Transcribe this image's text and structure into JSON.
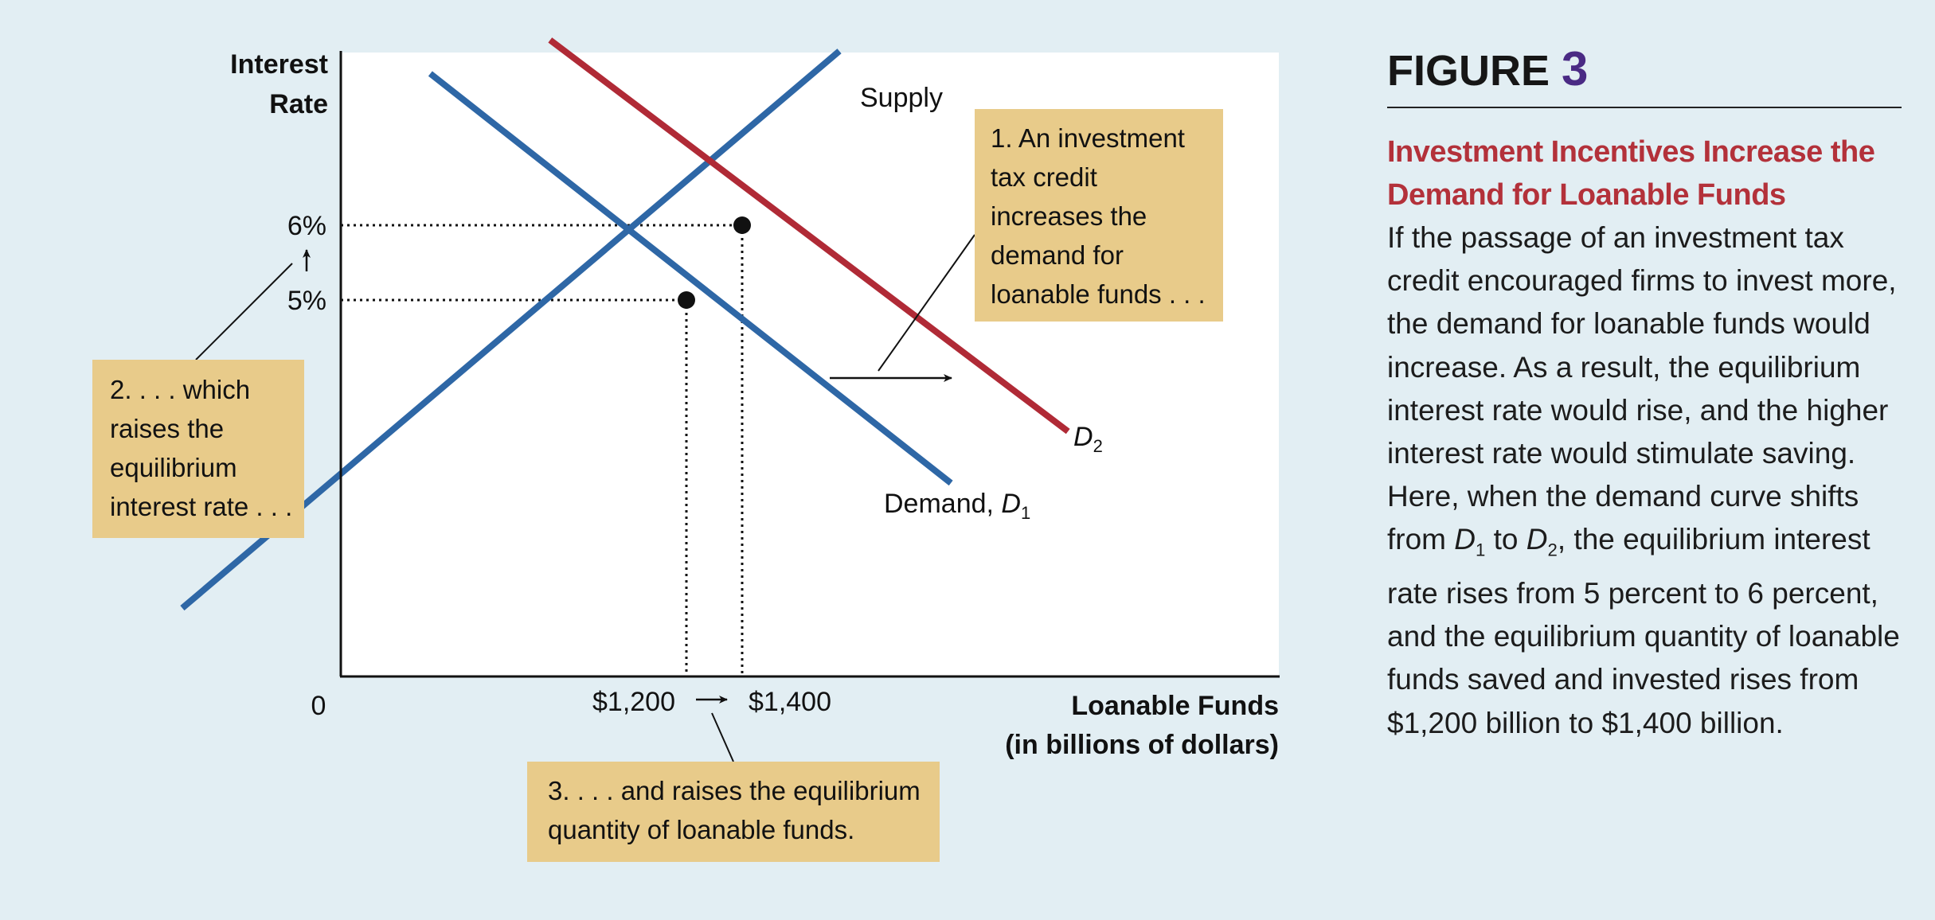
{
  "figure": {
    "label": "FIGURE",
    "number": "3",
    "title": "Investment Incentives Increase the Demand for Loanable Funds",
    "caption": {
      "p1": "If the passage of an investment tax credit encouraged firms to invest more, the demand for loanable funds would increase. As a result, the equilibrium interest rate would rise, and the higher interest rate would stimulate saving. Here, when the demand curve shifts from ",
      "d1": "D",
      "d1_sub": "1",
      "p2": " to ",
      "d2": "D",
      "d2_sub": "2",
      "p3": ", the equilibrium interest rate rises from 5 percent to 6 percent, and the equilibrium quantity of loanable funds saved and invested rises from $1,200 billion to $1,400 billion."
    }
  },
  "callouts": {
    "c1": [
      "1. An investment",
      "tax credit",
      "increases the",
      "demand for",
      "loanable funds . . ."
    ],
    "c2": [
      "2. . . . which",
      "raises the",
      "equilibrium",
      "interest rate . . ."
    ],
    "c3": [
      "3. . . . and raises the equilibrium",
      "quantity of loanable funds."
    ]
  },
  "colors": {
    "supply": "#2e67a6",
    "demand1": "#2e67a6",
    "demand2": "#b02a36",
    "callout_bg": "#e8cb8a",
    "background": "#e2eef3",
    "plot_bg": "#ffffff"
  },
  "chart_data": {
    "type": "line",
    "ylabel": [
      "Interest",
      "Rate"
    ],
    "xlabel": [
      "Loanable Funds",
      "(in billions of dollars)"
    ],
    "origin_label": "0",
    "y_ticks": [
      {
        "value": 5,
        "label": "5%"
      },
      {
        "value": 6,
        "label": "6%"
      }
    ],
    "x_ticks": [
      {
        "value": 1200,
        "label": "$1,200"
      },
      {
        "value": 1400,
        "label": "$1,400"
      }
    ],
    "series": [
      {
        "name": "Supply",
        "color": "#2e67a6",
        "label": "Supply",
        "points": [
          [
            -600,
            0.91
          ],
          [
            1740,
            8.3
          ]
        ]
      },
      {
        "name": "Demand, D1",
        "color": "#2e67a6",
        "label": "Demand, ",
        "label_letter": "D",
        "label_sub": "1",
        "points": [
          [
            290,
            8.0
          ],
          [
            2140,
            2.58
          ]
        ]
      },
      {
        "name": "D2",
        "color": "#b02a36",
        "label": "",
        "label_letter": "D",
        "label_sub": "2",
        "points": [
          [
            720,
            8.45
          ],
          [
            2560,
            3.27
          ]
        ]
      }
    ],
    "equilibria": [
      {
        "x": 1200,
        "y": 5
      },
      {
        "x": 1400,
        "y": 6
      }
    ]
  }
}
